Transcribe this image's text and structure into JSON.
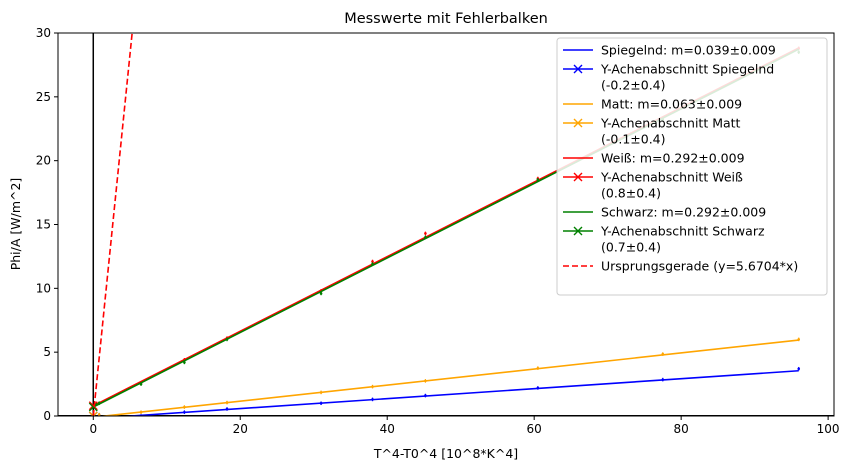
{
  "chart_data": {
    "type": "line",
    "title": "Messwerte mit Fehlerbalken",
    "xlabel": "T^4-T0^4 [10^8*K^4]",
    "ylabel": "Phi/A [W/m^2]",
    "xlim": [
      -4.8,
      100.8
    ],
    "ylim": [
      0,
      30
    ],
    "x_ticks": [
      0,
      20,
      40,
      60,
      80,
      100
    ],
    "y_ticks": [
      0,
      5,
      10,
      15,
      20,
      25,
      30
    ],
    "grid": false,
    "legend_position": "top-right",
    "reference_lines": [
      {
        "axis": "x",
        "value": 0,
        "color": "#000000"
      },
      {
        "axis": "y",
        "value": 0,
        "color": "#000000"
      }
    ],
    "measurement_x": [
      0.8,
      6.5,
      12.4,
      18.2,
      31.0,
      38.0,
      45.2,
      60.5,
      77.5,
      96.0
    ],
    "series": [
      {
        "name": "Spiegelnd: m=0.039±0.009",
        "intercept_label": "Y-Achenabschnitt Spiegelnd\n(-0.2±0.4)",
        "slope": 0.039,
        "intercept": -0.2,
        "color": "#0000ff",
        "points": [
          0.1,
          0.0,
          0.3,
          0.55,
          1.0,
          1.3,
          1.6,
          2.2,
          2.85,
          3.7
        ]
      },
      {
        "name": "Matt: m=0.063±0.009",
        "intercept_label": "Y-Achenabschnitt Matt\n(-0.1±0.4)",
        "slope": 0.063,
        "intercept": -0.1,
        "color": "#ffa500",
        "points": [
          0.1,
          0.3,
          0.7,
          1.05,
          1.85,
          2.3,
          2.75,
          3.75,
          4.85,
          6.0
        ]
      },
      {
        "name": "Weiß: m=0.292±0.009",
        "intercept_label": "Y-Achenabschnitt Weiß\n(0.8±0.4)",
        "slope": 0.292,
        "intercept": 0.8,
        "color": "#ff0000",
        "points": [
          1.0,
          2.6,
          4.4,
          6.1,
          9.8,
          12.1,
          14.3,
          18.6,
          23.3,
          28.8
        ]
      },
      {
        "name": "Schwarz: m=0.292±0.009",
        "intercept_label": "Y-Achenabschnitt Schwarz\n(0.7±0.4)",
        "slope": 0.292,
        "intercept": 0.7,
        "color": "#008000",
        "points": [
          1.0,
          2.5,
          4.2,
          6.0,
          9.6,
          11.9,
          14.0,
          18.5,
          23.2,
          28.5
        ]
      }
    ],
    "reference_line": {
      "name": "Ursprungsgerade (y=5.6704*x)",
      "slope": 5.6704,
      "intercept": 0,
      "color": "#ff0000",
      "style": "dashed"
    }
  }
}
